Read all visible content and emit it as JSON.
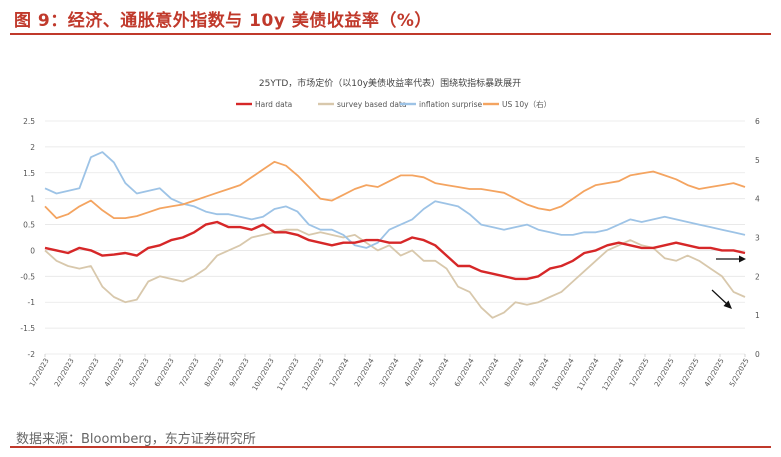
{
  "figure": {
    "title": "图 9：经济、通胀意外指数与 10y 美债收益率（%）",
    "source": "数据来源：Bloomberg，东方证券研究所"
  },
  "colors": {
    "accent": "#c0392b",
    "hard": "#d62728",
    "survey": "#d8c8ac",
    "inflation": "#9dc3e6",
    "us10y": "#f4a460"
  },
  "chart_data": {
    "type": "line",
    "title": "25YTD，市场定价（以10y美债收益率代表）围绕软指标暴跌展开",
    "legend_position": "top",
    "grid": true,
    "y_left_lim": [
      -2,
      2.5
    ],
    "y_left_ticks": [
      "2.5",
      "2",
      "1.5",
      "1",
      "0.5",
      "0",
      "-0.5",
      "-1",
      "-1.5",
      "-2"
    ],
    "y_right_lim": [
      0,
      6
    ],
    "y_right_ticks": [
      "6",
      "5",
      "4",
      "3",
      "2",
      "1",
      "0"
    ],
    "x_tick_labels": [
      "1/2/2023",
      "2/2/2023",
      "3/2/2023",
      "4/2/2023",
      "5/2/2023",
      "6/2/2023",
      "7/2/2023",
      "8/2/2023",
      "9/2/2023",
      "10/2/2023",
      "11/2/2023",
      "12/2/2023",
      "1/2/2024",
      "2/2/2024",
      "3/2/2024",
      "4/2/2024",
      "5/2/2024",
      "6/2/2024",
      "7/2/2024",
      "8/2/2024",
      "9/2/2024",
      "10/2/2024",
      "11/2/2024",
      "12/2/2024",
      "1/2/2025",
      "2/2/2025",
      "3/2/2025",
      "4/2/2025",
      "5/2/2025"
    ],
    "series": [
      {
        "name": "Hard data",
        "axis": "left",
        "color": "#d62728",
        "values": [
          0.05,
          0.0,
          -0.05,
          0.05,
          0.0,
          -0.1,
          -0.08,
          -0.05,
          -0.1,
          0.05,
          0.1,
          0.2,
          0.25,
          0.35,
          0.5,
          0.55,
          0.45,
          0.45,
          0.4,
          0.5,
          0.35,
          0.35,
          0.3,
          0.2,
          0.15,
          0.1,
          0.15,
          0.15,
          0.2,
          0.2,
          0.15,
          0.15,
          0.25,
          0.2,
          0.1,
          -0.1,
          -0.3,
          -0.3,
          -0.4,
          -0.45,
          -0.5,
          -0.55,
          -0.55,
          -0.5,
          -0.35,
          -0.3,
          -0.2,
          -0.05,
          0.0,
          0.1,
          0.15,
          0.1,
          0.05,
          0.05,
          0.1,
          0.15,
          0.1,
          0.05,
          0.05,
          0.0,
          0.0,
          -0.05
        ]
      },
      {
        "name": "survey based data",
        "axis": "left",
        "color": "#d8c8ac",
        "values": [
          0.0,
          -0.2,
          -0.3,
          -0.35,
          -0.3,
          -0.7,
          -0.9,
          -1.0,
          -0.95,
          -0.6,
          -0.5,
          -0.55,
          -0.6,
          -0.5,
          -0.35,
          -0.1,
          0.0,
          0.1,
          0.25,
          0.3,
          0.35,
          0.4,
          0.4,
          0.3,
          0.35,
          0.3,
          0.25,
          0.3,
          0.15,
          0.0,
          0.1,
          -0.1,
          0.0,
          -0.2,
          -0.2,
          -0.35,
          -0.7,
          -0.8,
          -1.1,
          -1.3,
          -1.2,
          -1.0,
          -1.05,
          -1.0,
          -0.9,
          -0.8,
          -0.6,
          -0.4,
          -0.2,
          0.0,
          0.1,
          0.2,
          0.1,
          0.05,
          -0.15,
          -0.2,
          -0.1,
          -0.2,
          -0.35,
          -0.5,
          -0.8,
          -0.9
        ]
      },
      {
        "name": "inflation surprise",
        "axis": "left",
        "color": "#9dc3e6",
        "values": [
          1.2,
          1.1,
          1.15,
          1.2,
          1.8,
          1.9,
          1.7,
          1.3,
          1.1,
          1.15,
          1.2,
          1.0,
          0.9,
          0.85,
          0.75,
          0.7,
          0.7,
          0.65,
          0.6,
          0.65,
          0.8,
          0.85,
          0.75,
          0.5,
          0.4,
          0.4,
          0.3,
          0.1,
          0.05,
          0.15,
          0.4,
          0.5,
          0.6,
          0.8,
          0.95,
          0.9,
          0.85,
          0.7,
          0.5,
          0.45,
          0.4,
          0.45,
          0.5,
          0.4,
          0.35,
          0.3,
          0.3,
          0.35,
          0.35,
          0.4,
          0.5,
          0.6,
          0.55,
          0.6,
          0.65,
          0.6,
          0.55,
          0.5,
          0.45,
          0.4,
          0.35,
          0.3
        ]
      },
      {
        "name": "US 10y（右）",
        "axis": "right",
        "color": "#f4a460",
        "values": [
          3.8,
          3.5,
          3.6,
          3.8,
          3.95,
          3.7,
          3.5,
          3.5,
          3.55,
          3.65,
          3.75,
          3.8,
          3.85,
          3.95,
          4.05,
          4.15,
          4.25,
          4.35,
          4.55,
          4.75,
          4.95,
          4.85,
          4.6,
          4.3,
          4.0,
          3.95,
          4.1,
          4.25,
          4.35,
          4.3,
          4.45,
          4.6,
          4.6,
          4.55,
          4.4,
          4.35,
          4.3,
          4.25,
          4.25,
          4.2,
          4.15,
          4.0,
          3.85,
          3.75,
          3.7,
          3.8,
          4.0,
          4.2,
          4.35,
          4.4,
          4.45,
          4.6,
          4.65,
          4.7,
          4.6,
          4.5,
          4.35,
          4.25,
          4.3,
          4.35,
          4.4,
          4.3
        ]
      }
    ]
  }
}
